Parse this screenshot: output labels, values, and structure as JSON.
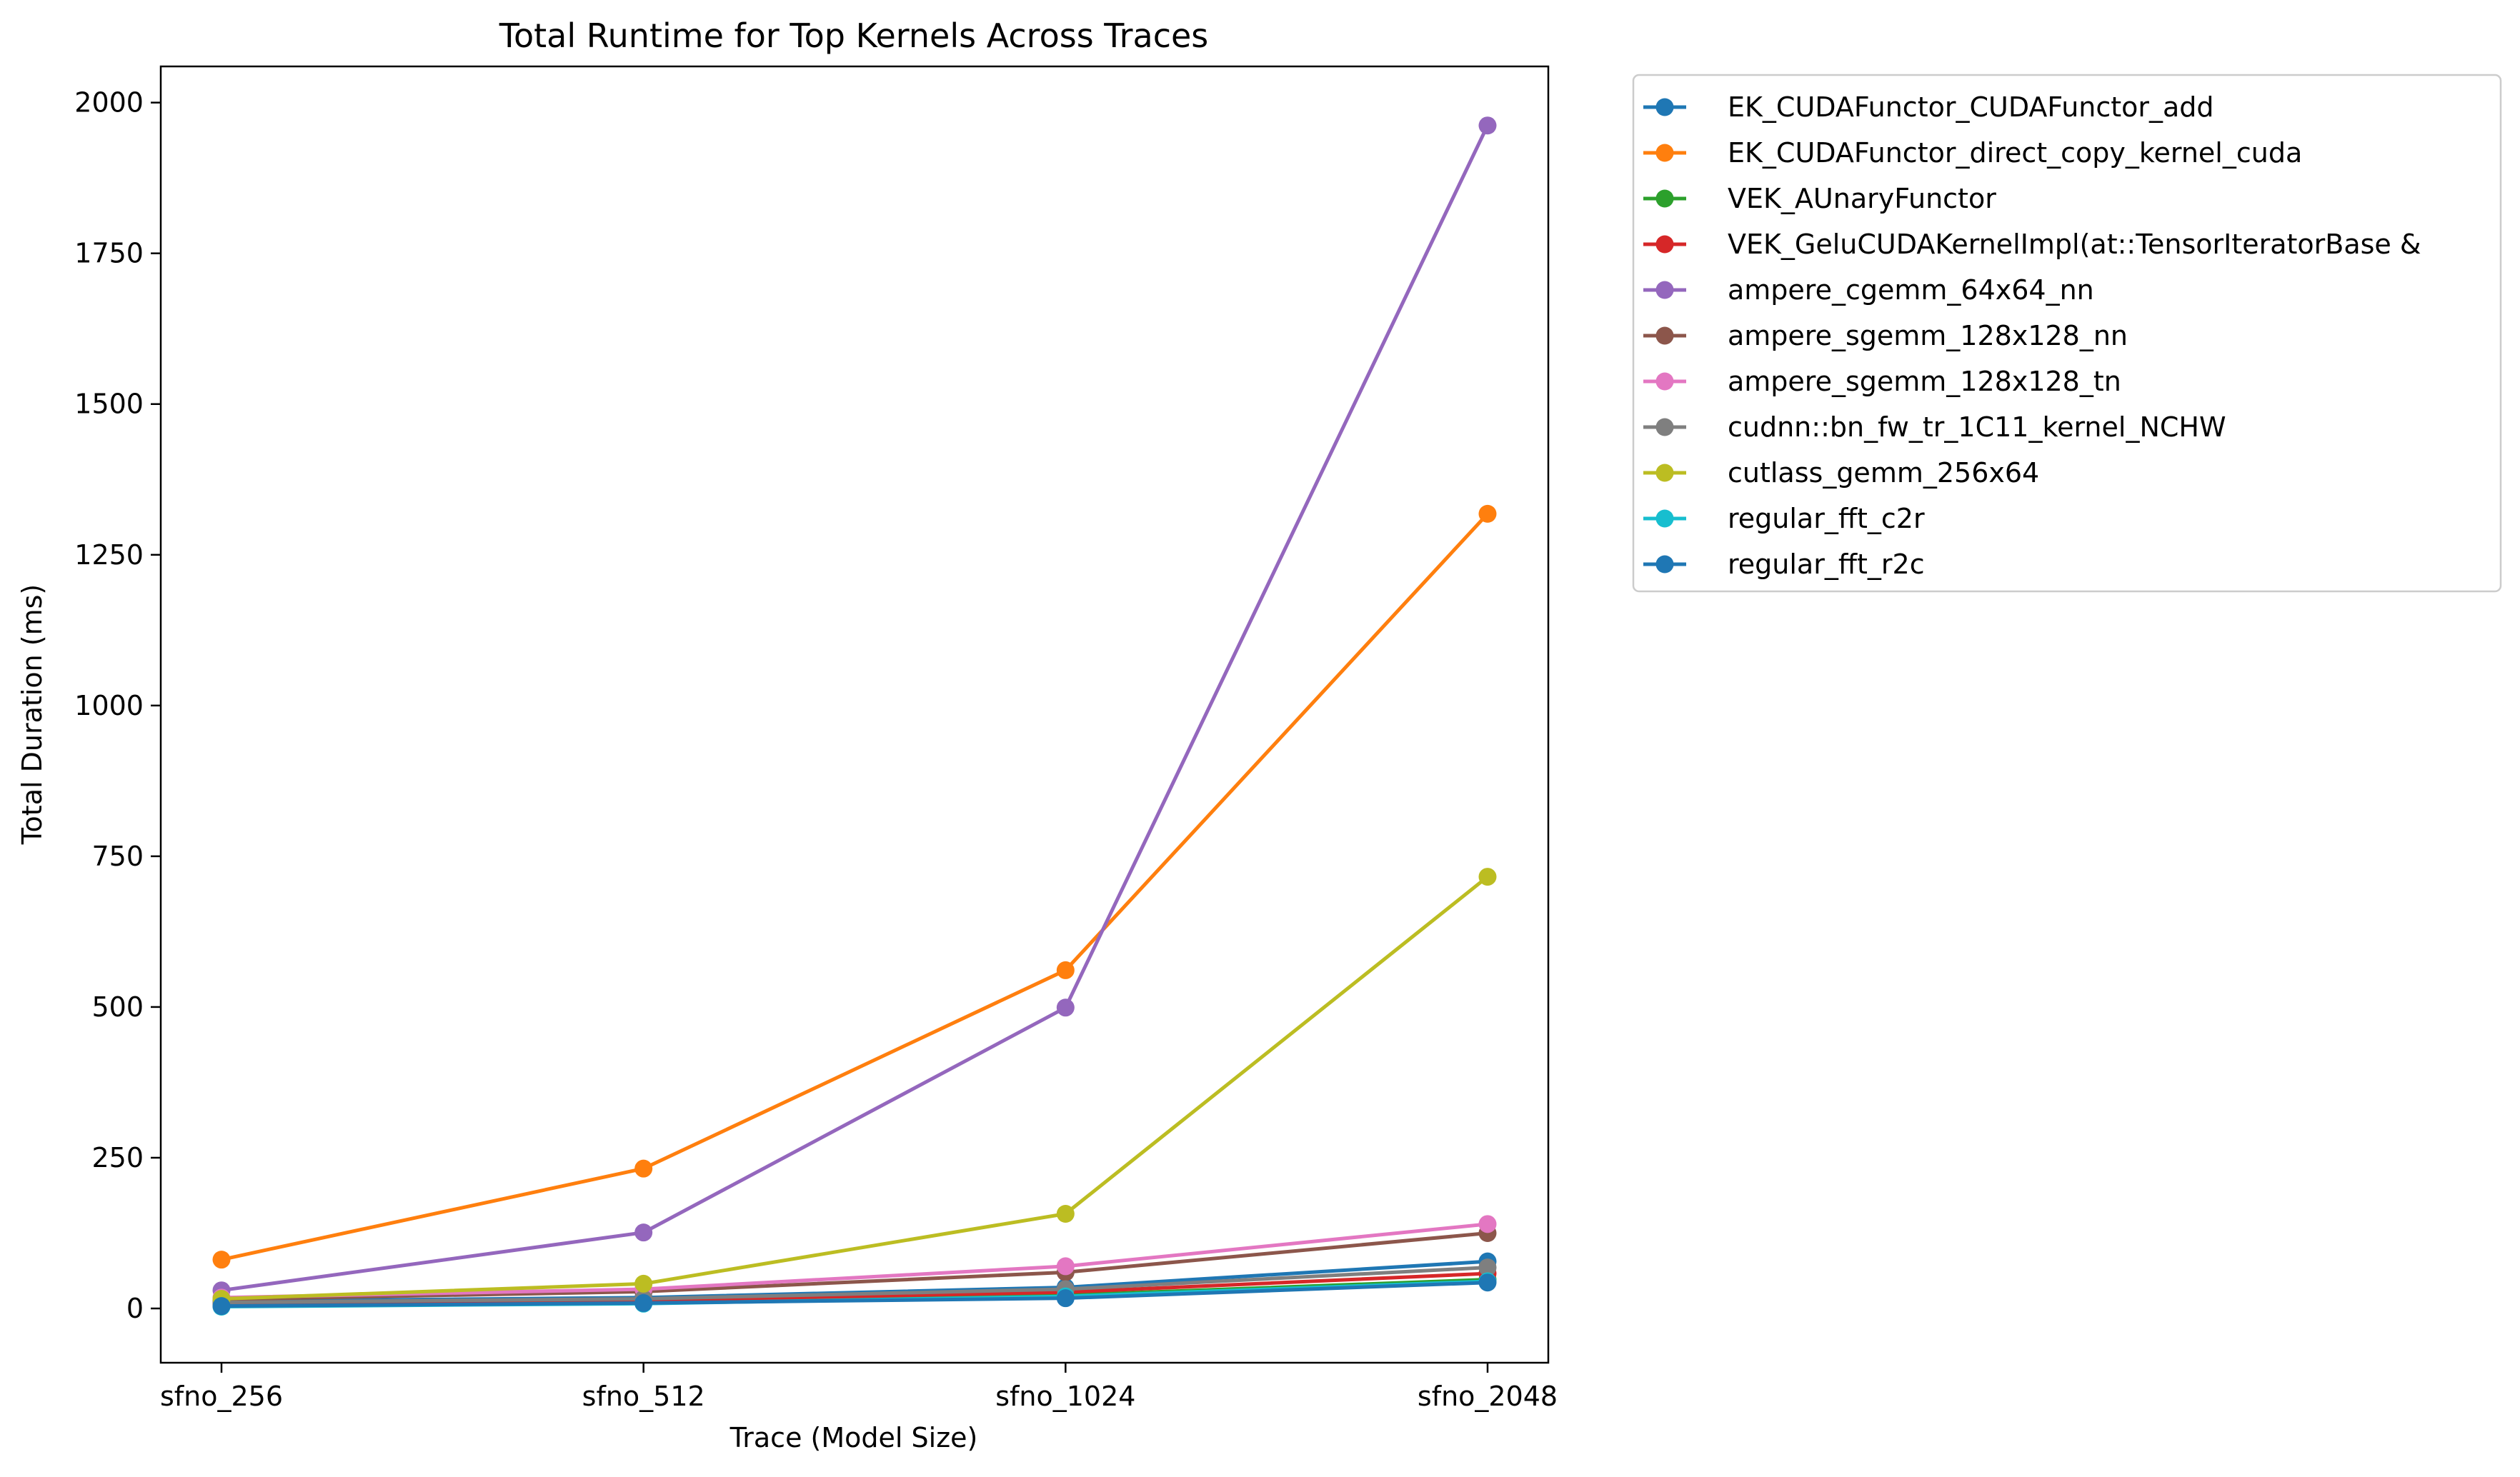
{
  "chart_data": {
    "type": "line",
    "title": "Total Runtime for Top Kernels Across Traces",
    "xlabel": "Trace (Model Size)",
    "ylabel": "Total Duration (ms)",
    "categories": [
      "sfno_256",
      "sfno_512",
      "sfno_1024",
      "sfno_2048"
    ],
    "ylim": [
      -90,
      2060
    ],
    "yticks": [
      0,
      250,
      500,
      750,
      1000,
      1250,
      1500,
      1750,
      2000
    ],
    "grid": false,
    "legend_position": "outside-upper-right",
    "series": [
      {
        "name": "EK_CUDAFunctor_CUDAFunctor_add",
        "color": "#1f77b4",
        "values": [
          12,
          18,
          35,
          78
        ]
      },
      {
        "name": "EK_CUDAFunctor_direct_copy_kernel_cuda",
        "color": "#ff7f0e",
        "values": [
          81,
          232,
          561,
          1318
        ]
      },
      {
        "name": "VEK_AUnaryFunctor",
        "color": "#2ca02c",
        "values": [
          7,
          11,
          22,
          48
        ]
      },
      {
        "name": "VEK_GeluCUDAKernelImpl(at::TensorIteratorBase &",
        "color": "#d62728",
        "values": [
          9,
          13,
          27,
          58
        ]
      },
      {
        "name": "ampere_cgemm_64x64_nn",
        "color": "#9467bd",
        "values": [
          30,
          126,
          499,
          1962
        ]
      },
      {
        "name": "ampere_sgemm_128x128_nn",
        "color": "#8c564b",
        "values": [
          15,
          28,
          60,
          125
        ]
      },
      {
        "name": "ampere_sgemm_128x128_tn",
        "color": "#e377c2",
        "values": [
          18,
          32,
          70,
          140
        ]
      },
      {
        "name": "cudnn::bn_fw_tr_1C11_kernel_NCHW",
        "color": "#7f7f7f",
        "values": [
          10,
          16,
          32,
          68
        ]
      },
      {
        "name": "cutlass_gemm_256x64",
        "color": "#bcbd22",
        "values": [
          16,
          41,
          157,
          716
        ]
      },
      {
        "name": "regular_fft_c2r",
        "color": "#17becf",
        "values": [
          3,
          8,
          20,
          45
        ]
      },
      {
        "name": "regular_fft_r2c",
        "color": "#1f77b4",
        "values": [
          4,
          9,
          17,
          43
        ]
      }
    ]
  }
}
